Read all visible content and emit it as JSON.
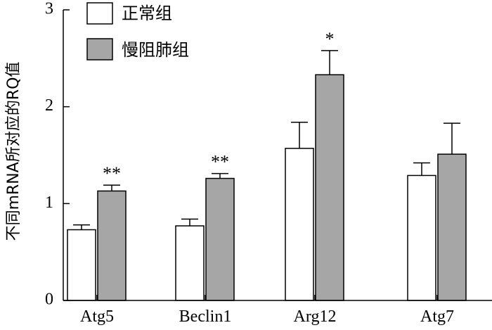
{
  "chart_data": {
    "type": "bar",
    "title": "",
    "xlabel": "",
    "ylabel": "不同mRNA所对应的RQ值",
    "ylim": [
      0,
      3
    ],
    "yticks": [
      0,
      1,
      2,
      3
    ],
    "grid": false,
    "legend_position": "top-left",
    "categories": [
      "Atg5",
      "Beclin1",
      "Arg12",
      "Atg7"
    ],
    "series": [
      {
        "name": "正常组",
        "color": "#ffffff",
        "values": [
          0.73,
          0.77,
          1.57,
          1.29
        ],
        "errors": [
          0.05,
          0.07,
          0.27,
          0.13
        ]
      },
      {
        "name": "慢阻肺组",
        "color": "#a6a6a6",
        "values": [
          1.13,
          1.26,
          2.33,
          1.51
        ],
        "errors": [
          0.06,
          0.05,
          0.25,
          0.32
        ]
      }
    ],
    "annotations": [
      "**",
      "**",
      "*",
      ""
    ]
  }
}
